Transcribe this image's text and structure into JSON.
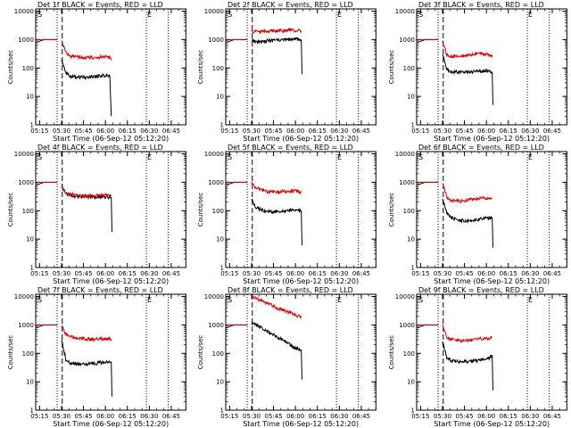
{
  "layout": {
    "cols": 3,
    "rows": 3
  },
  "colors": {
    "events": "#000000",
    "lld": "#dd0000",
    "axis": "#000000"
  },
  "common": {
    "ylabel": "Counts/sec",
    "xlabel": "Start Time (06-Sep-12 05:12:20)",
    "x_ticks": [
      "05:15",
      "05:30",
      "05:45",
      "06:00",
      "06:15",
      "06:30",
      "06:45"
    ],
    "x_tick_minutes": [
      15,
      30,
      45,
      60,
      75,
      90,
      105
    ],
    "y_ticks": [
      "1",
      "10",
      "100",
      "1000",
      "10000"
    ],
    "y_tick_values": [
      1,
      10,
      100,
      1000,
      10000
    ],
    "xlim_minutes": [
      12.33,
      115
    ],
    "ylim": [
      1,
      12000
    ],
    "s_label": "S",
    "e_label": "E",
    "s_minute": 13,
    "e_minute": 88,
    "dashed_minute": 30.5,
    "dotted_minutes": [
      27,
      88,
      103
    ]
  },
  "chart_data": [
    {
      "type": "line",
      "scale": "log",
      "title": "Det 1f BLACK = Events, RED = LLD",
      "series": [
        {
          "name": "BLACK = Events",
          "segments": [
            [
              [
                13,
                800
              ],
              [
                18,
                1000
              ],
              [
                27,
                1000
              ]
            ],
            [
              [
                30,
                200
              ],
              [
                33,
                70
              ],
              [
                36,
                50
              ],
              [
                42,
                48
              ],
              [
                48,
                47
              ],
              [
                54,
                50
              ],
              [
                60,
                55
              ],
              [
                63,
                52
              ],
              [
                64,
                2
              ]
            ]
          ]
        },
        {
          "name": "RED = LLD",
          "segments": [
            [
              [
                13,
                1000
              ],
              [
                27,
                1000
              ]
            ],
            [
              [
                30,
                900
              ],
              [
                33,
                350
              ],
              [
                36,
                260
              ],
              [
                42,
                240
              ],
              [
                48,
                230
              ],
              [
                54,
                240
              ],
              [
                60,
                250
              ],
              [
                64,
                220
              ]
            ]
          ]
        }
      ]
    },
    {
      "type": "line",
      "scale": "log",
      "title": "Det 2f BLACK = Events, RED = LLD",
      "series": [
        {
          "name": "BLACK = Events",
          "segments": [
            [
              [
                13,
                800
              ],
              [
                18,
                1000
              ],
              [
                27,
                1000
              ]
            ],
            [
              [
                30,
                950
              ],
              [
                33,
                800
              ],
              [
                36,
                850
              ],
              [
                45,
                950
              ],
              [
                55,
                1000
              ],
              [
                60,
                1050
              ],
              [
                64,
                1000
              ],
              [
                64.5,
                60
              ]
            ]
          ]
        },
        {
          "name": "RED = LLD",
          "segments": [
            [
              [
                13,
                1000
              ],
              [
                27,
                1000
              ]
            ],
            [
              [
                30,
                2000
              ],
              [
                33,
                1900
              ],
              [
                40,
                1950
              ],
              [
                50,
                2050
              ],
              [
                58,
                2100
              ],
              [
                64,
                2000
              ]
            ]
          ]
        }
      ]
    },
    {
      "type": "line",
      "scale": "log",
      "title": "Det 3f BLACK = Events, RED = LLD",
      "series": [
        {
          "name": "BLACK = Events",
          "segments": [
            [
              [
                13,
                800
              ],
              [
                18,
                1000
              ],
              [
                27,
                1000
              ]
            ],
            [
              [
                30,
                300
              ],
              [
                33,
                90
              ],
              [
                36,
                75
              ],
              [
                42,
                70
              ],
              [
                48,
                70
              ],
              [
                54,
                75
              ],
              [
                60,
                80
              ],
              [
                64,
                72
              ],
              [
                64.5,
                5
              ]
            ]
          ]
        },
        {
          "name": "RED = LLD",
          "segments": [
            [
              [
                13,
                1000
              ],
              [
                27,
                1000
              ]
            ],
            [
              [
                30,
                900
              ],
              [
                33,
                300
              ],
              [
                36,
                260
              ],
              [
                42,
                250
              ],
              [
                48,
                270
              ],
              [
                54,
                340
              ],
              [
                58,
                310
              ],
              [
                64,
                280
              ]
            ]
          ]
        }
      ]
    },
    {
      "type": "line",
      "scale": "log",
      "title": "Det 4f BLACK = Events, RED = LLD",
      "series": [
        {
          "name": "BLACK = Events",
          "segments": [
            [
              [
                13,
                800
              ],
              [
                18,
                1000
              ],
              [
                27,
                1000
              ]
            ],
            [
              [
                30,
                700
              ],
              [
                33,
                400
              ],
              [
                36,
                340
              ],
              [
                42,
                320
              ],
              [
                48,
                310
              ],
              [
                54,
                310
              ],
              [
                60,
                300
              ],
              [
                64,
                290
              ],
              [
                64.5,
                18
              ]
            ]
          ]
        },
        {
          "name": "RED = LLD",
          "segments": [
            [
              [
                13,
                1000
              ],
              [
                27,
                1000
              ]
            ],
            [
              [
                30,
                800
              ],
              [
                33,
                420
              ],
              [
                36,
                370
              ],
              [
                42,
                350
              ],
              [
                48,
                340
              ],
              [
                54,
                340
              ],
              [
                60,
                350
              ],
              [
                64,
                330
              ]
            ]
          ]
        }
      ]
    },
    {
      "type": "line",
      "scale": "log",
      "title": "Det 5f BLACK = Events, RED = LLD",
      "series": [
        {
          "name": "BLACK = Events",
          "segments": [
            [
              [
                13,
                800
              ],
              [
                18,
                1000
              ],
              [
                27,
                1000
              ]
            ],
            [
              [
                30,
                250
              ],
              [
                33,
                130
              ],
              [
                36,
                110
              ],
              [
                42,
                90
              ],
              [
                48,
                95
              ],
              [
                54,
                100
              ],
              [
                60,
                110
              ],
              [
                64,
                100
              ],
              [
                64.5,
                6
              ]
            ]
          ]
        },
        {
          "name": "RED = LLD",
          "segments": [
            [
              [
                13,
                1000
              ],
              [
                27,
                1000
              ]
            ],
            [
              [
                30,
                900
              ],
              [
                33,
                620
              ],
              [
                36,
                560
              ],
              [
                42,
                450
              ],
              [
                48,
                460
              ],
              [
                54,
                480
              ],
              [
                60,
                500
              ],
              [
                64,
                450
              ]
            ]
          ]
        }
      ]
    },
    {
      "type": "line",
      "scale": "log",
      "title": "Det 6f BLACK = Events, RED = LLD",
      "series": [
        {
          "name": "BLACK = Events",
          "segments": [
            [
              [
                13,
                800
              ],
              [
                18,
                1000
              ],
              [
                27,
                1000
              ]
            ],
            [
              [
                30,
                250
              ],
              [
                33,
                80
              ],
              [
                36,
                55
              ],
              [
                42,
                45
              ],
              [
                48,
                45
              ],
              [
                54,
                50
              ],
              [
                60,
                55
              ],
              [
                64,
                55
              ],
              [
                64.5,
                5
              ]
            ]
          ]
        },
        {
          "name": "RED = LLD",
          "segments": [
            [
              [
                13,
                1000
              ],
              [
                27,
                1000
              ]
            ],
            [
              [
                30,
                900
              ],
              [
                33,
                300
              ],
              [
                36,
                230
              ],
              [
                42,
                210
              ],
              [
                48,
                240
              ],
              [
                54,
                260
              ],
              [
                60,
                280
              ],
              [
                64,
                260
              ]
            ]
          ]
        }
      ]
    },
    {
      "type": "line",
      "scale": "log",
      "title": "Det 7f BLACK = Events, RED = LLD",
      "series": [
        {
          "name": "BLACK = Events",
          "segments": [
            [
              [
                13,
                800
              ],
              [
                18,
                1000
              ],
              [
                27,
                1000
              ]
            ],
            [
              [
                30,
                300
              ],
              [
                33,
                60
              ],
              [
                36,
                45
              ],
              [
                42,
                42
              ],
              [
                48,
                42
              ],
              [
                54,
                45
              ],
              [
                60,
                50
              ],
              [
                64,
                50
              ],
              [
                64.5,
                3
              ]
            ]
          ]
        },
        {
          "name": "RED = LLD",
          "segments": [
            [
              [
                13,
                1000
              ],
              [
                27,
                1000
              ]
            ],
            [
              [
                30,
                1000
              ],
              [
                33,
                450
              ],
              [
                36,
                380
              ],
              [
                42,
                330
              ],
              [
                48,
                320
              ],
              [
                54,
                310
              ],
              [
                60,
                330
              ],
              [
                64,
                320
              ]
            ]
          ]
        }
      ]
    },
    {
      "type": "line",
      "scale": "log",
      "title": "Det 8f BLACK = Events, RED = LLD",
      "series": [
        {
          "name": "BLACK = Events",
          "segments": [
            [
              [
                13,
                800
              ],
              [
                18,
                1000
              ],
              [
                27,
                1000
              ]
            ],
            [
              [
                30,
                1200
              ],
              [
                33,
                1000
              ],
              [
                40,
                650
              ],
              [
                45,
                450
              ],
              [
                50,
                320
              ],
              [
                55,
                230
              ],
              [
                60,
                150
              ],
              [
                64,
                130
              ],
              [
                64.5,
                12
              ]
            ]
          ]
        },
        {
          "name": "RED = LLD",
          "segments": [
            [
              [
                13,
                1000
              ],
              [
                27,
                1000
              ]
            ],
            [
              [
                30,
                10000
              ],
              [
                33,
                8500
              ],
              [
                40,
                6000
              ],
              [
                45,
                4500
              ],
              [
                50,
                3500
              ],
              [
                55,
                2800
              ],
              [
                60,
                2300
              ],
              [
                64,
                1800
              ]
            ]
          ]
        }
      ]
    },
    {
      "type": "line",
      "scale": "log",
      "title": "Det 9f BLACK = Events, RED = LLD",
      "series": [
        {
          "name": "BLACK = Events",
          "segments": [
            [
              [
                13,
                800
              ],
              [
                18,
                1000
              ],
              [
                27,
                1000
              ]
            ],
            [
              [
                30,
                250
              ],
              [
                33,
                70
              ],
              [
                36,
                55
              ],
              [
                42,
                50
              ],
              [
                48,
                52
              ],
              [
                54,
                55
              ],
              [
                60,
                60
              ],
              [
                64,
                80
              ],
              [
                64.5,
                5
              ]
            ]
          ]
        },
        {
          "name": "RED = LLD",
          "segments": [
            [
              [
                13,
                1000
              ],
              [
                27,
                1000
              ]
            ],
            [
              [
                30,
                1000
              ],
              [
                33,
                380
              ],
              [
                36,
                310
              ],
              [
                42,
                280
              ],
              [
                48,
                290
              ],
              [
                54,
                310
              ],
              [
                60,
                330
              ],
              [
                64,
                360
              ]
            ]
          ]
        }
      ]
    }
  ]
}
